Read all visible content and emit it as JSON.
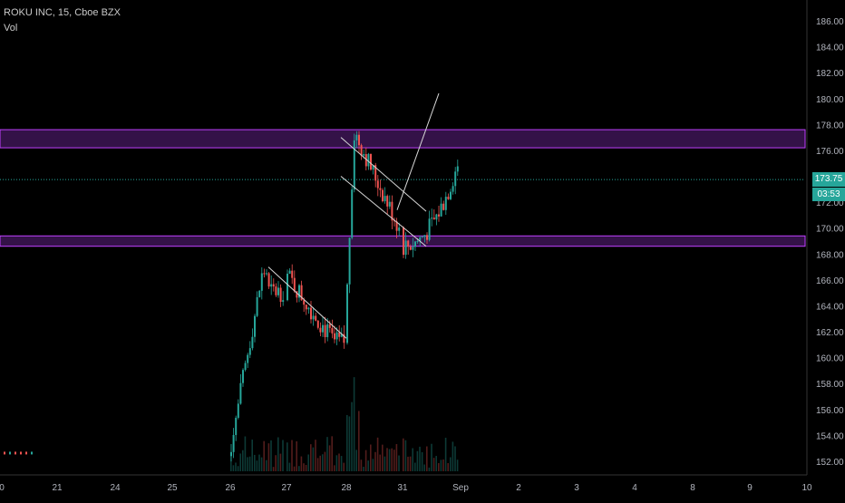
{
  "header": {
    "title": "ROKU INC, 15, Cboe BZX",
    "indicator": "Vol"
  },
  "last_price": {
    "label": "173.75",
    "value": 173.75,
    "timer": "03:53",
    "color": "#26a69a"
  },
  "colors": {
    "up": "#26a69a",
    "down": "#ef5350",
    "zone_border": "#c040ff",
    "zone_fill": "#3a1450",
    "axis_text": "#b2b5be",
    "trendline": "#d8d8d8"
  },
  "chart_data": {
    "type": "candlestick",
    "ylim": [
      151.5,
      187
    ],
    "y_ticks": [
      152,
      154,
      156,
      158,
      160,
      162,
      164,
      166,
      168,
      170,
      172,
      174,
      176,
      178,
      180,
      182,
      184,
      186
    ],
    "x_ticks": [
      "0",
      "21",
      "24",
      "25",
      "26",
      "27",
      "28",
      "31",
      "Sep",
      "2",
      "3",
      "4",
      "8",
      "9",
      "10"
    ],
    "resistance_zone": [
      176.2,
      177.6
    ],
    "support_zone": [
      168.6,
      169.4
    ],
    "series": [
      {
        "segments": [
          {
            "x_from": "26",
            "x_to": "27",
            "o": 152.4,
            "h_up": 166.6
          },
          {
            "x_from": "27",
            "x_to": "28",
            "o": 166.6,
            "h_up": 161.2
          },
          {
            "x_from": "28",
            "x_to": "31",
            "o": 161.2,
            "h_up": 177.2
          },
          {
            "x_from": "31",
            "x_to": "Sep",
            "o": 168.6,
            "h_up": 175
          }
        ]
      }
    ],
    "trendlines": [
      {
        "from": [
          "27",
          167.0
        ],
        "to": [
          "28",
          161.5
        ]
      },
      {
        "from": [
          "28",
          177.0
        ],
        "to": [
          "31",
          171.3
        ]
      },
      {
        "from": [
          "28",
          174.0
        ],
        "to": [
          "31",
          168.6
        ]
      },
      {
        "from": [
          "31",
          171.4
        ],
        "to": [
          "Sep",
          180.4
        ]
      }
    ]
  }
}
